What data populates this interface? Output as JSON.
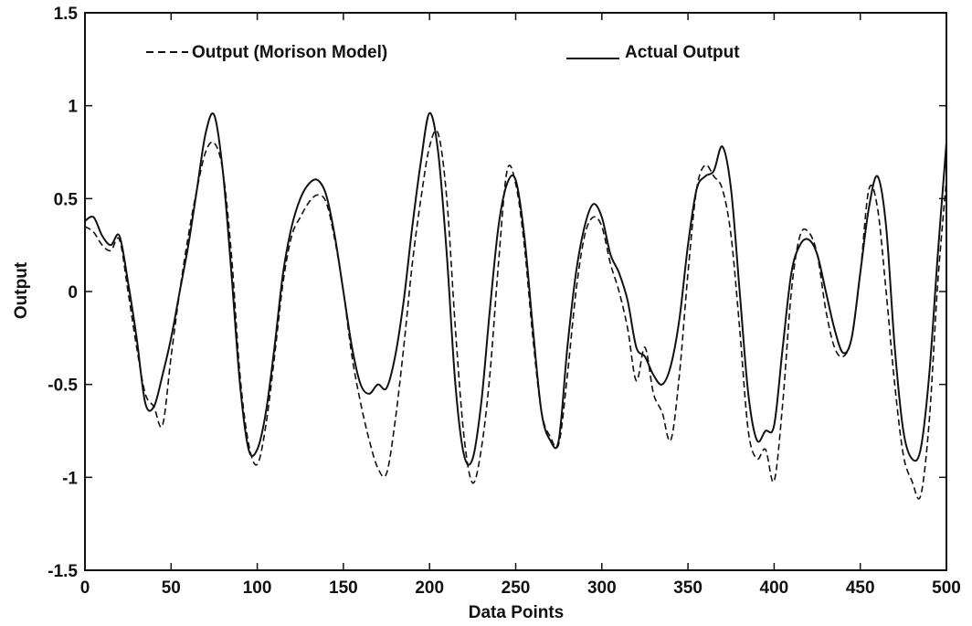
{
  "chart_data": {
    "type": "line",
    "title": "",
    "xlabel": "Data Points",
    "ylabel": "Output",
    "xlim": [
      0,
      500
    ],
    "ylim": [
      -1.5,
      1.5
    ],
    "x_ticks": [
      0,
      50,
      100,
      150,
      200,
      250,
      300,
      350,
      400,
      450,
      500
    ],
    "y_ticks": [
      -1.5,
      -1,
      -0.5,
      0,
      0.5,
      1,
      1.5
    ],
    "x_tick_labels": [
      "0",
      "50",
      "100",
      "150",
      "200",
      "250",
      "300",
      "350",
      "400",
      "450",
      "500"
    ],
    "y_tick_labels": [
      "-1.5",
      "-1",
      "-0.5",
      "0",
      "0.5",
      "1",
      "1.5"
    ],
    "grid": false,
    "legend_position": "top",
    "series": [
      {
        "name": "Output (Morison Model)",
        "style": "dashed",
        "color": "#111111",
        "x": [
          0,
          5,
          10,
          15,
          20,
          25,
          30,
          35,
          40,
          45,
          50,
          55,
          60,
          65,
          70,
          75,
          80,
          85,
          90,
          95,
          100,
          105,
          110,
          115,
          120,
          125,
          130,
          135,
          140,
          145,
          150,
          155,
          160,
          165,
          170,
          175,
          180,
          185,
          190,
          195,
          200,
          205,
          210,
          215,
          220,
          225,
          230,
          235,
          240,
          245,
          250,
          255,
          260,
          265,
          270,
          275,
          280,
          285,
          290,
          295,
          300,
          305,
          310,
          315,
          320,
          325,
          330,
          335,
          340,
          345,
          350,
          355,
          360,
          365,
          370,
          375,
          380,
          385,
          390,
          395,
          400,
          405,
          410,
          415,
          420,
          425,
          430,
          435,
          440,
          445,
          450,
          455,
          460,
          465,
          470,
          475,
          480,
          485,
          490,
          495,
          500
        ],
        "y": [
          0.35,
          0.32,
          0.25,
          0.22,
          0.28,
          0.0,
          -0.3,
          -0.55,
          -0.62,
          -0.72,
          -0.35,
          0.0,
          0.3,
          0.55,
          0.75,
          0.8,
          0.65,
          0.2,
          -0.45,
          -0.82,
          -0.93,
          -0.72,
          -0.35,
          0.05,
          0.3,
          0.4,
          0.48,
          0.52,
          0.48,
          0.28,
          0.0,
          -0.35,
          -0.6,
          -0.8,
          -0.95,
          -0.98,
          -0.7,
          -0.3,
          0.15,
          0.5,
          0.78,
          0.85,
          0.5,
          -0.2,
          -0.78,
          -1.03,
          -0.85,
          -0.45,
          0.15,
          0.65,
          0.58,
          0.25,
          -0.25,
          -0.65,
          -0.78,
          -0.82,
          -0.45,
          0.0,
          0.3,
          0.4,
          0.35,
          0.15,
          0.0,
          -0.2,
          -0.48,
          -0.3,
          -0.55,
          -0.65,
          -0.8,
          -0.45,
          0.1,
          0.55,
          0.68,
          0.62,
          0.55,
          0.3,
          -0.2,
          -0.75,
          -0.9,
          -0.85,
          -1.02,
          -0.6,
          0.0,
          0.3,
          0.32,
          0.2,
          -0.1,
          -0.3,
          -0.35,
          -0.25,
          0.1,
          0.55,
          0.45,
          0.0,
          -0.5,
          -0.88,
          -1.02,
          -1.1,
          -0.7,
          0.05,
          0.6
        ]
      },
      {
        "name": "Actual Output",
        "style": "solid",
        "color": "#111111",
        "x": [
          0,
          5,
          10,
          15,
          20,
          25,
          30,
          35,
          40,
          45,
          50,
          55,
          60,
          65,
          70,
          75,
          80,
          85,
          90,
          95,
          100,
          105,
          110,
          115,
          120,
          125,
          130,
          135,
          140,
          145,
          150,
          155,
          160,
          165,
          170,
          175,
          180,
          185,
          190,
          195,
          200,
          205,
          210,
          215,
          220,
          225,
          230,
          235,
          240,
          245,
          250,
          255,
          260,
          265,
          270,
          275,
          280,
          285,
          290,
          295,
          300,
          305,
          310,
          315,
          320,
          325,
          330,
          335,
          340,
          345,
          350,
          355,
          360,
          365,
          370,
          375,
          380,
          385,
          390,
          395,
          400,
          405,
          410,
          415,
          420,
          425,
          430,
          435,
          440,
          445,
          450,
          455,
          460,
          465,
          470,
          475,
          480,
          485,
          490,
          495,
          500
        ],
        "y": [
          0.38,
          0.4,
          0.3,
          0.25,
          0.3,
          0.05,
          -0.25,
          -0.6,
          -0.62,
          -0.45,
          -0.25,
          0.0,
          0.25,
          0.55,
          0.85,
          0.95,
          0.65,
          0.1,
          -0.5,
          -0.85,
          -0.85,
          -0.65,
          -0.3,
          0.1,
          0.35,
          0.5,
          0.58,
          0.6,
          0.52,
          0.3,
          0.0,
          -0.3,
          -0.5,
          -0.55,
          -0.5,
          -0.52,
          -0.35,
          -0.05,
          0.35,
          0.7,
          0.96,
          0.75,
          0.2,
          -0.5,
          -0.88,
          -0.9,
          -0.6,
          -0.1,
          0.35,
          0.58,
          0.6,
          0.3,
          -0.2,
          -0.65,
          -0.8,
          -0.8,
          -0.3,
          0.1,
          0.35,
          0.47,
          0.4,
          0.2,
          0.1,
          -0.05,
          -0.3,
          -0.35,
          -0.45,
          -0.5,
          -0.4,
          -0.15,
          0.25,
          0.55,
          0.62,
          0.65,
          0.78,
          0.55,
          0.0,
          -0.55,
          -0.8,
          -0.75,
          -0.72,
          -0.3,
          0.1,
          0.25,
          0.28,
          0.2,
          0.0,
          -0.2,
          -0.33,
          -0.25,
          0.1,
          0.45,
          0.62,
          0.35,
          -0.3,
          -0.75,
          -0.9,
          -0.85,
          -0.45,
          0.2,
          0.8
        ]
      }
    ]
  }
}
